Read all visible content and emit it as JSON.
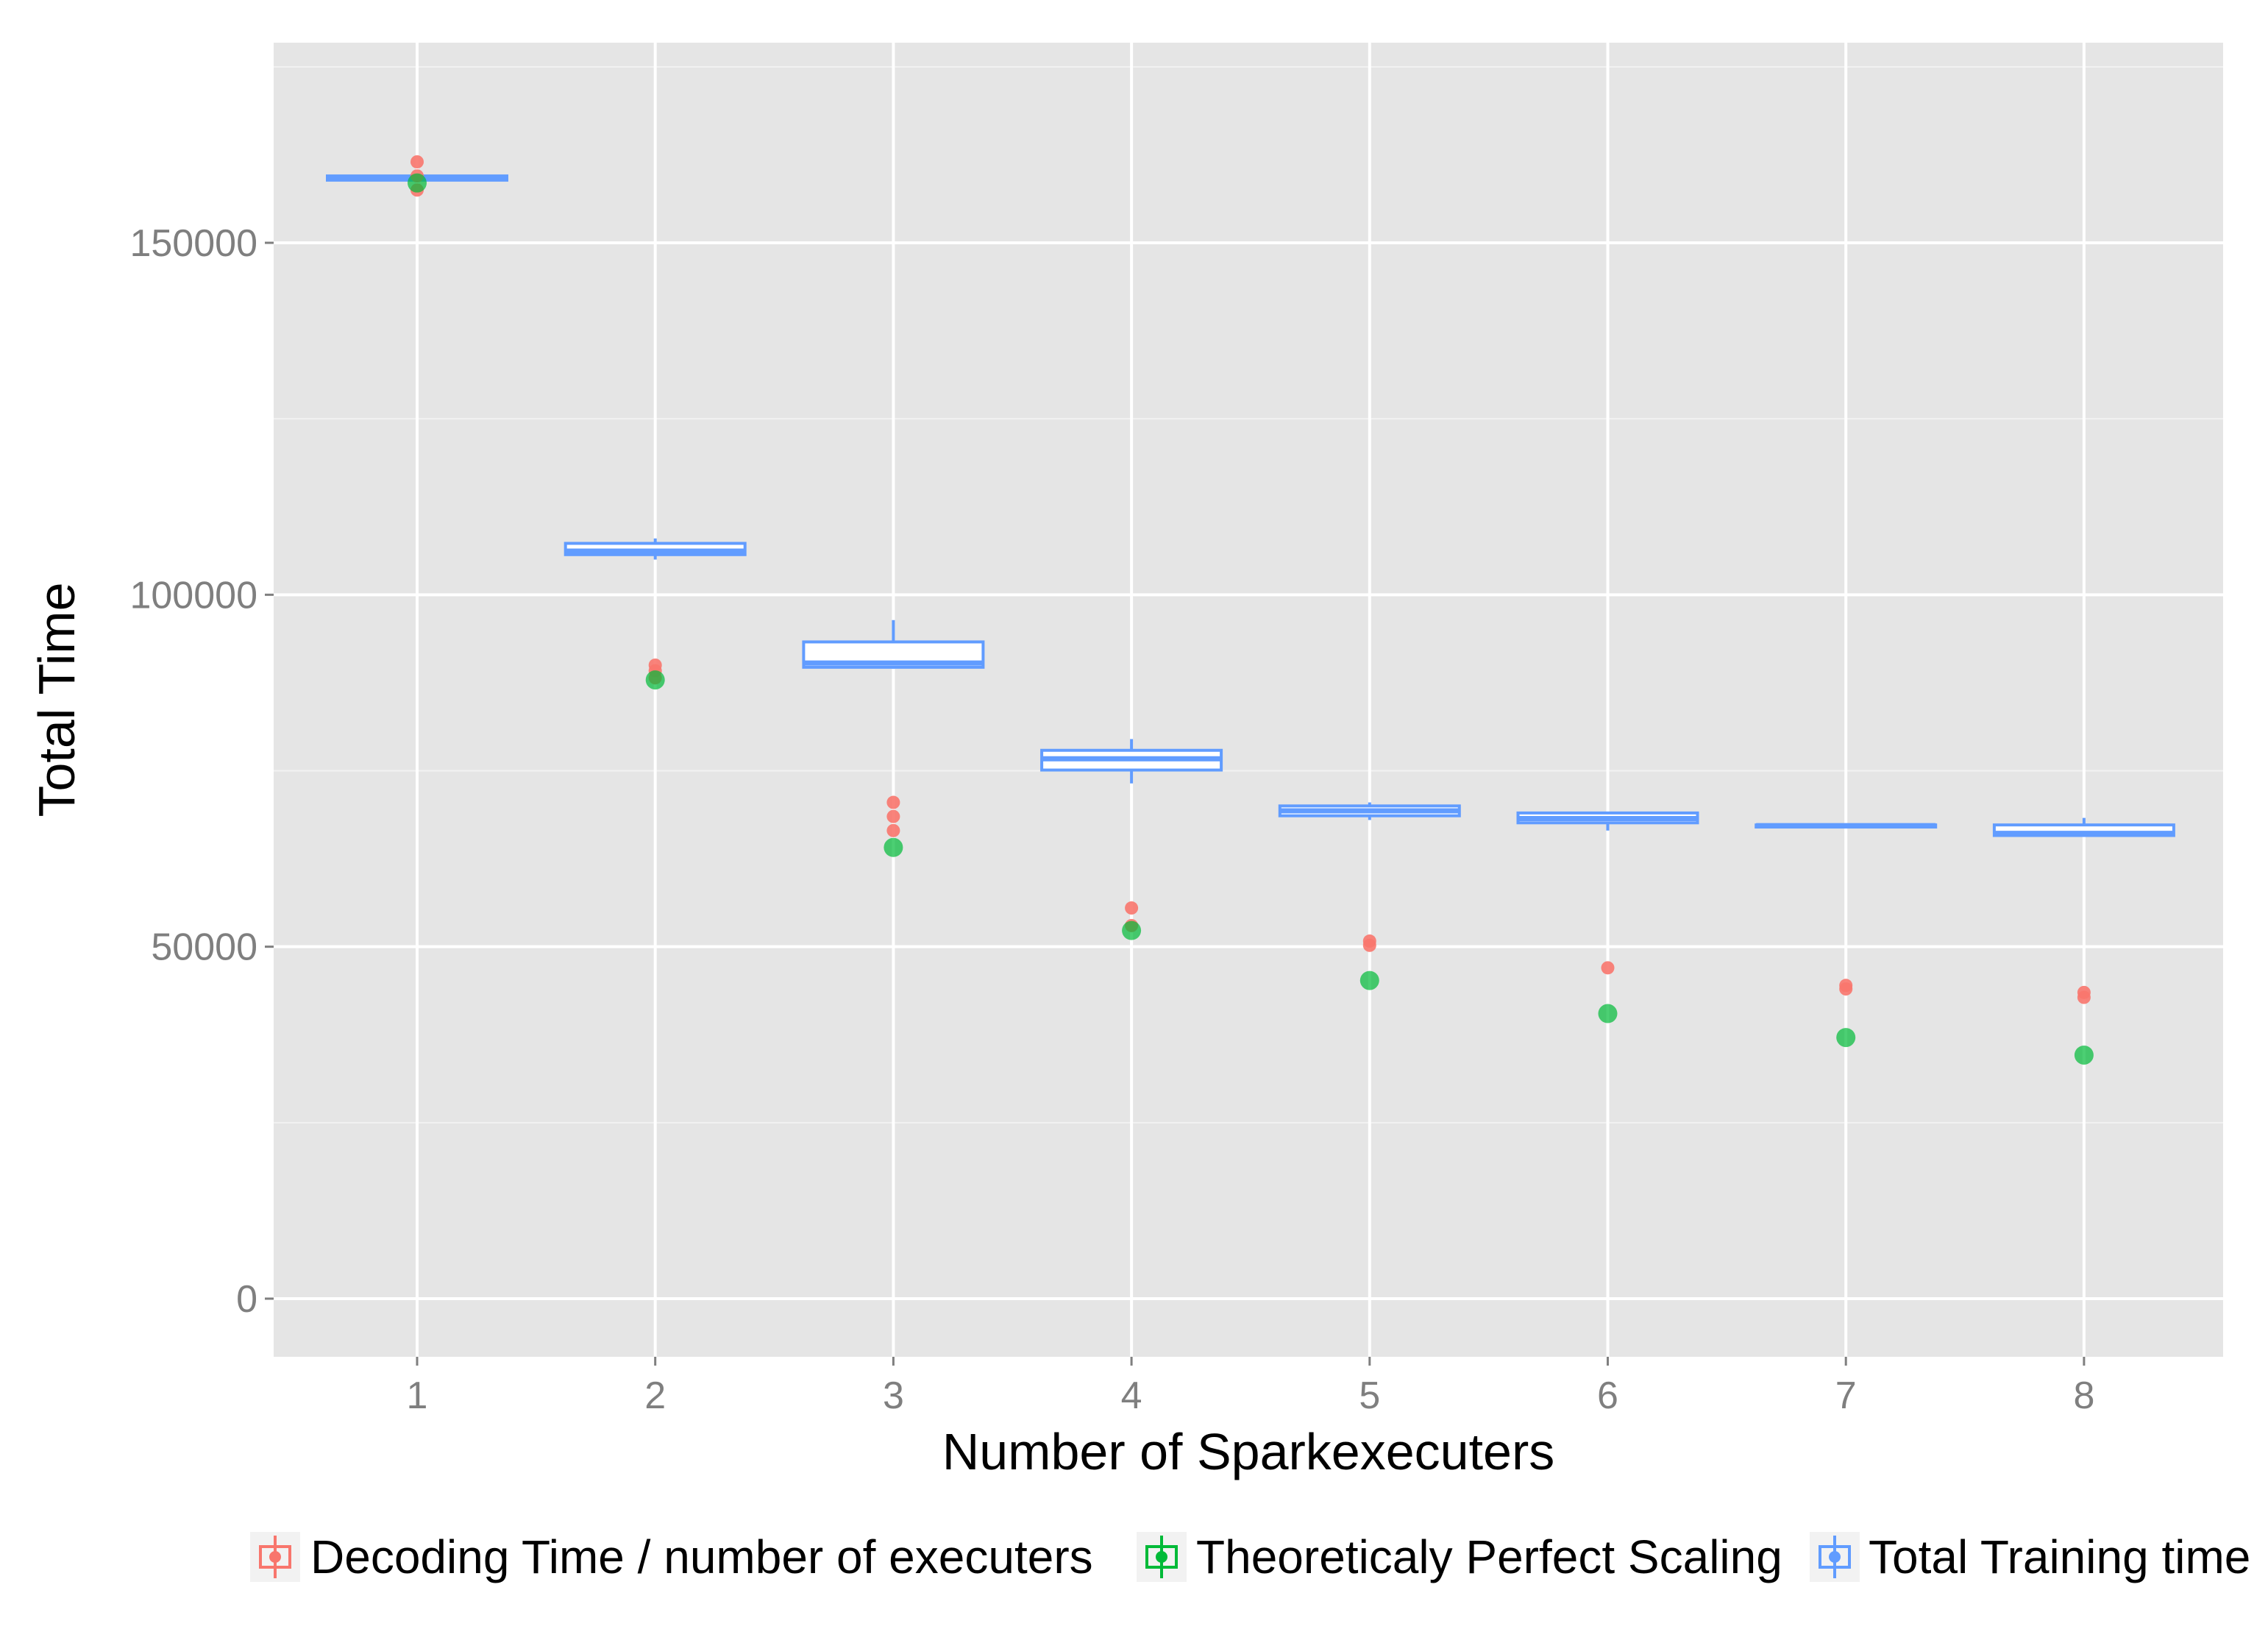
{
  "chart_data": {
    "type": "box",
    "xlabel": "Number of Sparkexecuters",
    "ylabel": "Total Time",
    "categories": [
      "1",
      "2",
      "3",
      "4",
      "5",
      "6",
      "7",
      "8"
    ],
    "yticks": [
      0,
      50000,
      100000,
      150000
    ],
    "ytick_labels": [
      "0",
      "50000",
      "100000",
      "150000"
    ],
    "ylim": [
      -8500,
      178000
    ],
    "grid": true,
    "legend_position": "bottom",
    "series": [
      {
        "name": "Decoding Time / number of executers",
        "color": "#F8766D",
        "kind": "points",
        "points": [
          [
            1,
            161500
          ],
          [
            1,
            159500
          ],
          [
            1,
            157500
          ],
          [
            2,
            90000
          ],
          [
            2,
            89200
          ],
          [
            2,
            88200
          ],
          [
            3,
            70500
          ],
          [
            3,
            68500
          ],
          [
            3,
            66500
          ],
          [
            4,
            55500
          ],
          [
            4,
            53000
          ],
          [
            5,
            50800
          ],
          [
            5,
            50200
          ],
          [
            6,
            47000
          ],
          [
            7,
            44500
          ],
          [
            7,
            44000
          ],
          [
            8,
            43500
          ],
          [
            8,
            42800
          ]
        ]
      },
      {
        "name": "Theoreticaly Perfect Scaling",
        "color": "#00BA38",
        "kind": "points",
        "points": [
          [
            1,
            158500
          ],
          [
            2,
            87900
          ],
          [
            3,
            64100
          ],
          [
            4,
            52300
          ],
          [
            5,
            45200
          ],
          [
            6,
            40500
          ],
          [
            7,
            37100
          ],
          [
            8,
            34600
          ]
        ]
      },
      {
        "name": "Total Training time",
        "color": "#619CFF",
        "kind": "box",
        "boxes": [
          {
            "x": 1,
            "lower": 158600,
            "q1": 158900,
            "median": 159200,
            "q3": 159500,
            "upper": 159700
          },
          {
            "x": 2,
            "lower": 105000,
            "q1": 105700,
            "median": 106200,
            "q3": 107300,
            "upper": 108000
          },
          {
            "x": 3,
            "lower": 89500,
            "q1": 89700,
            "median": 90300,
            "q3": 93300,
            "upper": 96400
          },
          {
            "x": 4,
            "lower": 73200,
            "q1": 75100,
            "median": 76700,
            "q3": 77900,
            "upper": 79500
          },
          {
            "x": 5,
            "lower": 68000,
            "q1": 68600,
            "median": 69300,
            "q3": 70000,
            "upper": 70500
          },
          {
            "x": 6,
            "lower": 66500,
            "q1": 67600,
            "median": 68200,
            "q3": 69000,
            "upper": 69000
          },
          {
            "x": 7,
            "lower": 66900,
            "q1": 67000,
            "median": 67200,
            "q3": 67300,
            "upper": 67400
          },
          {
            "x": 8,
            "lower": 65700,
            "q1": 65800,
            "median": 66100,
            "q3": 67300,
            "upper": 68300
          }
        ]
      }
    ]
  }
}
